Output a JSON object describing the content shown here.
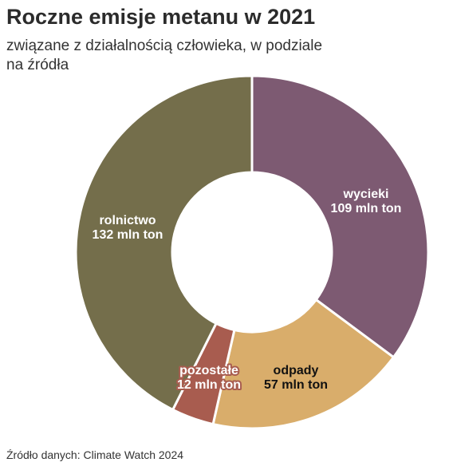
{
  "chart_data": {
    "type": "pie",
    "title": "Roczne emisje metanu w 2021",
    "subtitle": "związane z działalnością człowieka, w podziale na źródła",
    "donut": true,
    "slices": [
      {
        "name": "wycieki",
        "value": 109,
        "label": "109 mln ton",
        "color": "#7d5a72",
        "text_color": "#ffffff"
      },
      {
        "name": "odpady",
        "value": 57,
        "label": "57 mln ton",
        "color": "#d9ad6b",
        "text_color": "#111111"
      },
      {
        "name": "pozostałe",
        "value": 12,
        "label": "12 mln ton",
        "color": "#a85c4f",
        "text_color": "#ffffff"
      },
      {
        "name": "rolnictwo",
        "value": 132,
        "label": "132 mln ton",
        "color": "#746e4b",
        "text_color": "#ffffff"
      }
    ],
    "source": "Źródło danych: Climate Watch 2024"
  }
}
